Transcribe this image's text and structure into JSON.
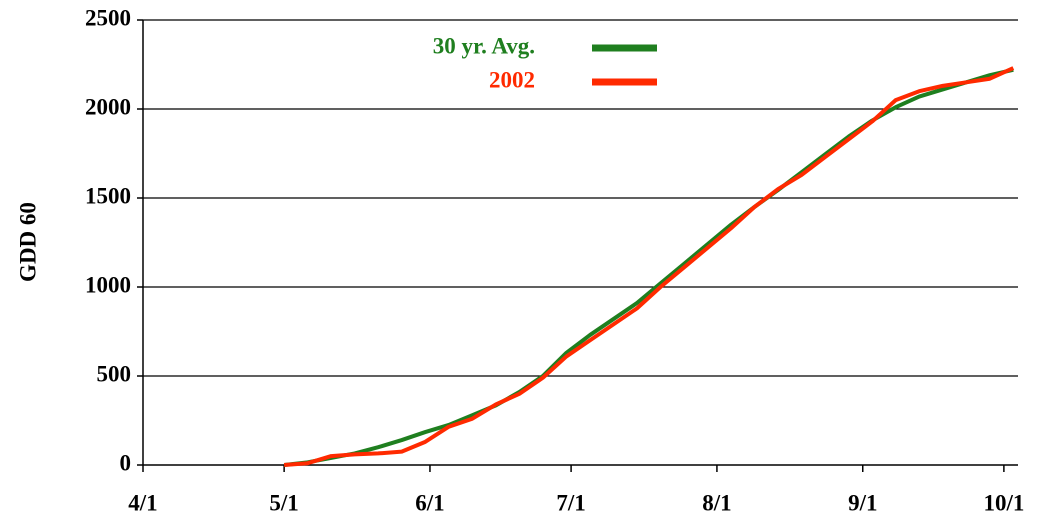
{
  "chart_data": {
    "type": "line",
    "ylabel": "GDD 60",
    "x": [
      121,
      126,
      131,
      136,
      141,
      146,
      151,
      156,
      161,
      166,
      171,
      176,
      181,
      186,
      191,
      196,
      201,
      206,
      211,
      216,
      221,
      226,
      231,
      236,
      241,
      246,
      251,
      256,
      261,
      266,
      271,
      276
    ],
    "series": [
      {
        "name": "30 yr. Avg.",
        "color": "#1f7f1f",
        "values": [
          0,
          15,
          40,
          65,
          100,
          140,
          185,
          225,
          280,
          335,
          410,
          500,
          630,
          730,
          820,
          910,
          1020,
          1130,
          1240,
          1350,
          1450,
          1545,
          1645,
          1745,
          1845,
          1935,
          2010,
          2070,
          2110,
          2150,
          2190,
          2220
        ]
      },
      {
        "name": "2002",
        "color": "#ff2a00",
        "values": [
          0,
          10,
          50,
          60,
          65,
          75,
          130,
          215,
          260,
          340,
          400,
          490,
          610,
          700,
          790,
          880,
          1000,
          1110,
          1220,
          1330,
          1450,
          1550,
          1630,
          1730,
          1830,
          1930,
          2050,
          2100,
          2130,
          2150,
          2170,
          2230
        ]
      }
    ],
    "xlim": [
      91,
      277
    ],
    "xticks": [
      {
        "value": 91,
        "label": "4/1"
      },
      {
        "value": 121,
        "label": "5/1"
      },
      {
        "value": 152,
        "label": "6/1"
      },
      {
        "value": 182,
        "label": "7/1"
      },
      {
        "value": 213,
        "label": "8/1"
      },
      {
        "value": 244,
        "label": "9/1"
      },
      {
        "value": 274,
        "label": "10/1"
      }
    ],
    "ylim": [
      0,
      2500
    ],
    "yticks": [
      0,
      500,
      1000,
      1500,
      2000,
      2500
    ],
    "grid": true
  }
}
